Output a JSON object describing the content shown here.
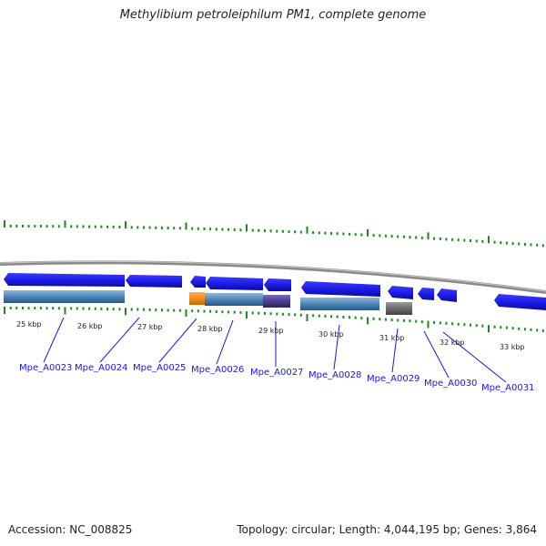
{
  "title": "Methylibium petroleiphilum PM1, complete genome",
  "footer": {
    "accession": "Accession: NC_008825",
    "summary": "Topology: circular; Length: 4,044,195 bp; Genes: 3,864"
  },
  "scale": {
    "kbp_labels": [
      "25 kbp",
      "26 kbp",
      "27 kbp",
      "28 kbp",
      "29 kbp",
      "30 kbp",
      "31 kbp",
      "32 kbp",
      "33 kbp"
    ]
  },
  "genes": [
    {
      "locus": "Mpe_A0023"
    },
    {
      "locus": "Mpe_A0024"
    },
    {
      "locus": "Mpe_A0025"
    },
    {
      "locus": "Mpe_A0026"
    },
    {
      "locus": "Mpe_A0027"
    },
    {
      "locus": "Mpe_A0028"
    },
    {
      "locus": "Mpe_A0029"
    },
    {
      "locus": "Mpe_A0030"
    },
    {
      "locus": "Mpe_A0031"
    }
  ],
  "colors": {
    "gene_arrow": "#1a1ae6",
    "domain_blue": "#4f86b8",
    "domain_orange": "#f28c1a",
    "domain_purple": "#4a3f8c",
    "domain_gray": "#6b6b6b",
    "tick": "#1e8a1e",
    "link": "#1a1acc",
    "backbone": "#8a8a8a"
  }
}
